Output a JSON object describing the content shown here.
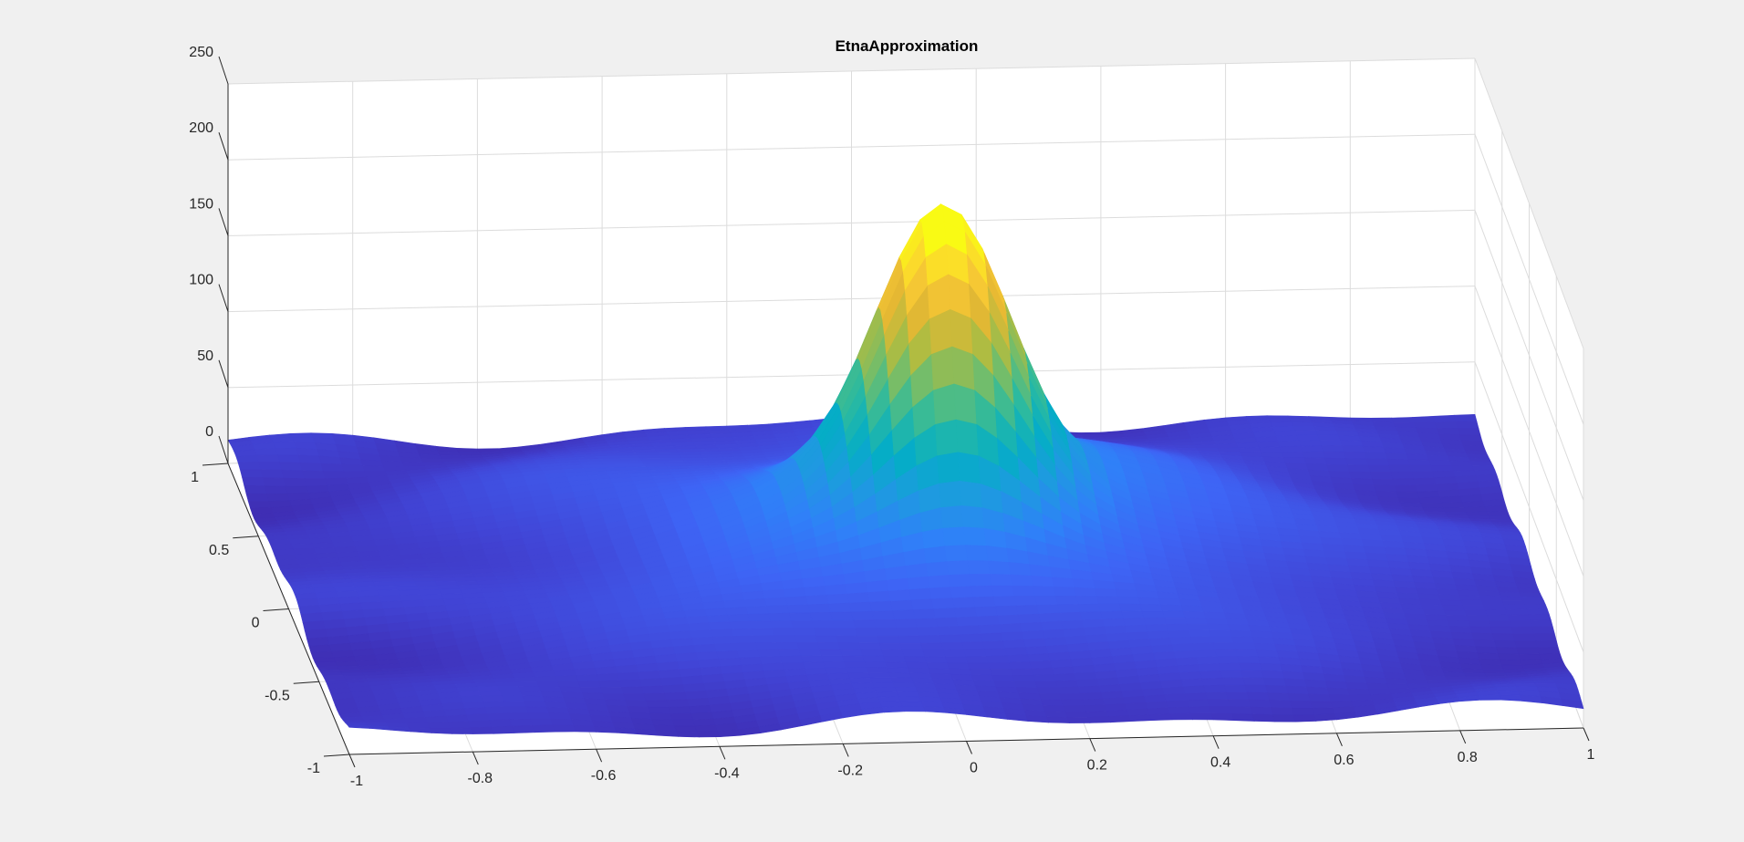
{
  "chart_data": {
    "type": "surface",
    "title": "EtnaApproximation",
    "xlabel": "",
    "ylabel": "",
    "zlabel": "",
    "x_ticks": [
      "-1",
      "-0.8",
      "-0.6",
      "-0.4",
      "-0.2",
      "0",
      "0.2",
      "0.4",
      "0.6",
      "0.8",
      "1"
    ],
    "y_ticks": [
      "-1",
      "-0.5",
      "0",
      "0.5",
      "1"
    ],
    "z_ticks": [
      "0",
      "50",
      "100",
      "150",
      "200",
      "250"
    ],
    "xlim": [
      -1,
      1
    ],
    "ylim": [
      -1,
      1
    ],
    "zlim": [
      0,
      250
    ],
    "grid": true,
    "colormap": "parula",
    "colormap_stops": [
      "#3e26a8",
      "#4145d6",
      "#3e64f5",
      "#2f81f8",
      "#1e9ae0",
      "#05adc6",
      "#2bbaa0",
      "#6cbd6f",
      "#aebc42",
      "#e5b833",
      "#fccd35",
      "#f9fa14"
    ],
    "peak": {
      "x": 0.07,
      "y": 0.15,
      "z": 225
    },
    "background_level_range": [
      0,
      45
    ]
  }
}
